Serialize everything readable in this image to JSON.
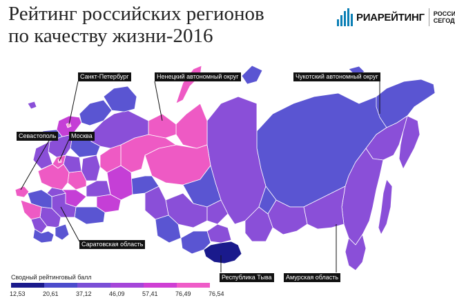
{
  "header": {
    "title_line1": "Рейтинг российских регионов",
    "title_line2": "по качеству жизни-2016",
    "logo_brand": "РИАРЕЙТИНГ",
    "logo_sub_line1": "РОССИЯ",
    "logo_sub_line2": "СЕГОДНЯ"
  },
  "callouts": {
    "spb": "Санкт-Петербург",
    "nenets": "Ненецкий автономный округ",
    "chukotka": "Чукотский автономный округ",
    "sevastopol": "Севастополь",
    "moscow": "Москва",
    "saratov": "Саратовская область",
    "tyva": "Республика Тыва",
    "amur": "Амурская область"
  },
  "legend": {
    "title": "Сводный рейтинговый балл",
    "ticks": [
      "12,53",
      "20,61",
      "37,12",
      "46,09",
      "57,41",
      "76,49",
      "76,54"
    ],
    "colors": [
      "#1a1a8c",
      "#4c4ccc",
      "#7a4fd6",
      "#a546d9",
      "#cf3fd4",
      "#ef5cc8",
      "#f7a6d6"
    ]
  },
  "colors": {
    "ocean": "#ffffff",
    "border": "#ffffff",
    "low": "#1a1a8c",
    "mid_blue": "#5a55d2",
    "purple": "#8a4fd8",
    "magenta": "#c53fd6",
    "pink": "#ee5ac4"
  }
}
